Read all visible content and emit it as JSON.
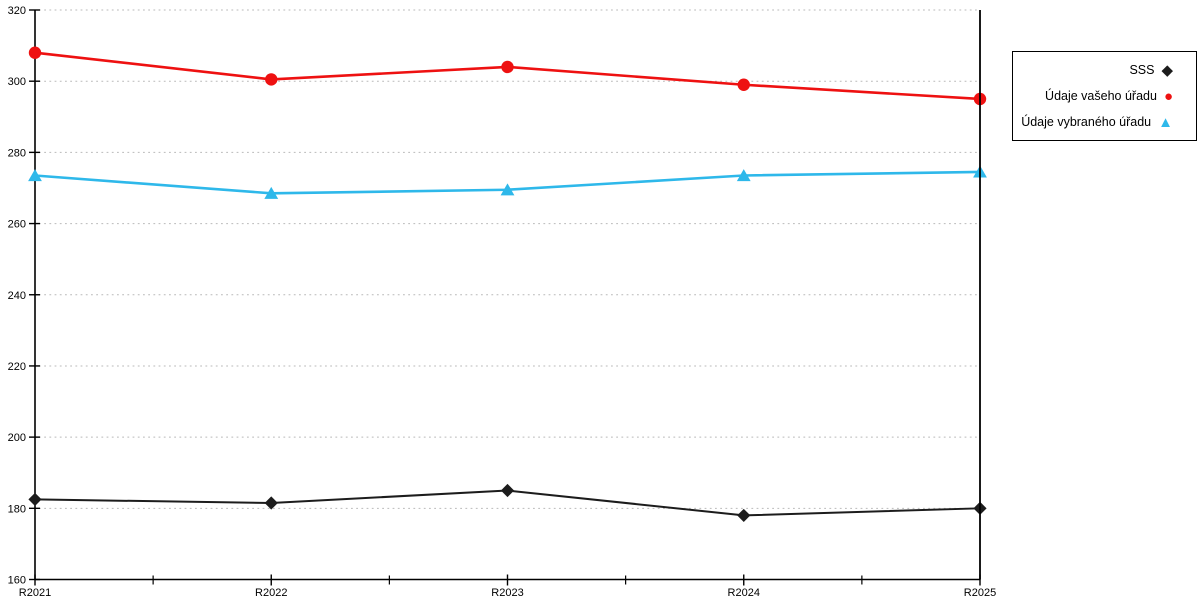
{
  "chart_data": {
    "type": "line",
    "title": "",
    "xlabel": "",
    "ylabel": "",
    "categories": [
      "R2021",
      "R2022",
      "R2023",
      "R2024",
      "R2025"
    ],
    "yticks": [
      160,
      180,
      200,
      220,
      240,
      260,
      280,
      300,
      320
    ],
    "ylim": [
      160,
      320
    ],
    "grid": "horizontal-dotted",
    "minor_x_ticks": true,
    "legend_position": "outside-top-right",
    "series": [
      {
        "name": "SSS",
        "marker": "diamond",
        "legend_glyph": "◆",
        "color": "#1c1c1c",
        "values": [
          182.5,
          181.5,
          185,
          178,
          180
        ]
      },
      {
        "name": "Údaje vašeho úřadu",
        "marker": "circle",
        "legend_glyph": "●",
        "color": "#ee1111",
        "values": [
          308,
          300.5,
          304,
          299,
          295
        ]
      },
      {
        "name": "Údaje vybraného úřadu",
        "marker": "triangle",
        "legend_glyph": "▲",
        "color": "#2eb8ea",
        "values": [
          273.5,
          268.5,
          269.5,
          273.5,
          274.5
        ]
      }
    ],
    "colors": {
      "axis": "#000000",
      "grid": "#b9b9b9"
    }
  }
}
